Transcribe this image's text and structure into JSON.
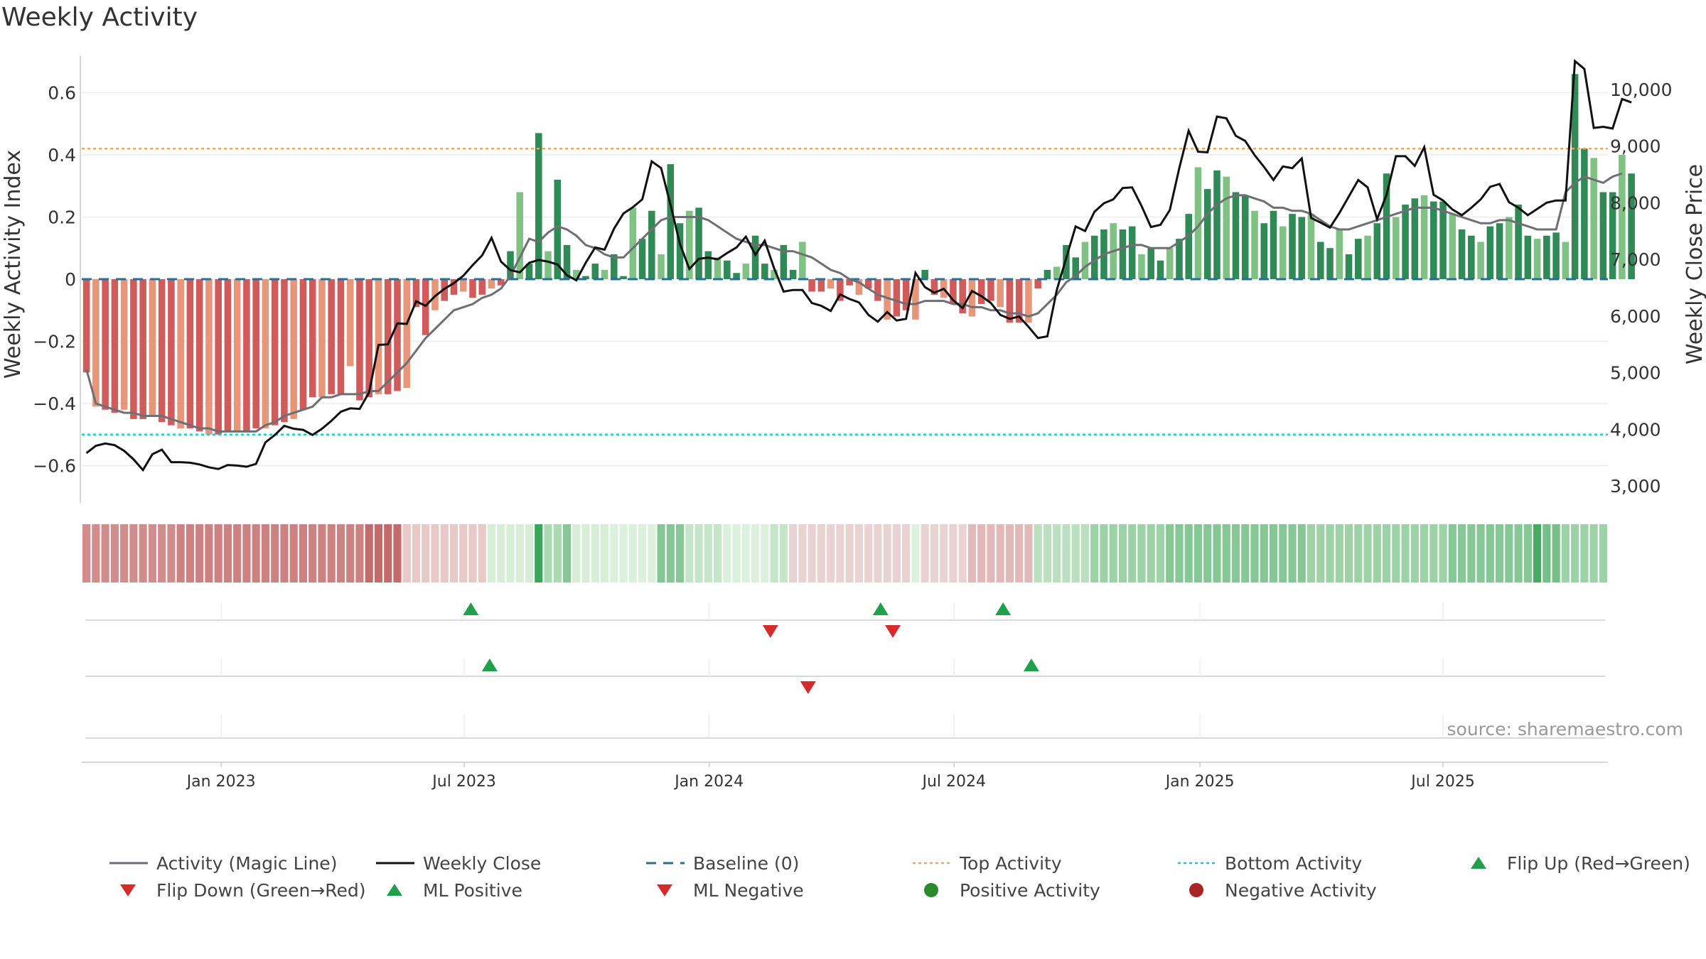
{
  "chart_data": {
    "type": "bar",
    "title": "Weekly Activity",
    "ylabel": "Weekly Activity Index",
    "y2label": "Weekly Close Price",
    "ylim": [
      -0.72,
      0.72
    ],
    "y2lim": [
      2700,
      10600
    ],
    "yticks": [
      -0.6,
      -0.4,
      -0.2,
      0,
      0.2,
      0.4,
      0.6
    ],
    "ytick_labels": [
      "−0.6",
      "−0.4",
      "−0.2",
      "0",
      "0.2",
      "0.4",
      "0.6"
    ],
    "y2ticks": [
      3000,
      4000,
      5000,
      6000,
      7000,
      8000,
      9000,
      10000
    ],
    "y2tick_labels": [
      "3,000",
      "4,000",
      "5,000",
      "6,000",
      "7,000",
      "8,000",
      "9,000",
      "10,000"
    ],
    "xlim_week": [
      0,
      162
    ],
    "xticks": [
      {
        "week": 14.8,
        "label": "Jan 2023"
      },
      {
        "week": 40.6,
        "label": "Jul 2023"
      },
      {
        "week": 66.6,
        "label": "Jan 2024"
      },
      {
        "week": 92.6,
        "label": "Jul 2024"
      },
      {
        "week": 118.7,
        "label": "Jan 2025"
      },
      {
        "week": 144.5,
        "label": "Jul 2025"
      }
    ],
    "grid": true,
    "top_activity": 0.42,
    "bottom_activity": -0.5,
    "baseline": 0,
    "activity": [
      -0.3,
      -0.41,
      -0.42,
      -0.43,
      -0.42,
      -0.45,
      -0.45,
      -0.44,
      -0.46,
      -0.47,
      -0.48,
      -0.48,
      -0.49,
      -0.5,
      -0.5,
      -0.49,
      -0.49,
      -0.49,
      -0.48,
      -0.48,
      -0.47,
      -0.46,
      -0.45,
      -0.42,
      -0.38,
      -0.38,
      -0.37,
      -0.37,
      -0.28,
      -0.39,
      -0.38,
      -0.37,
      -0.37,
      -0.36,
      -0.35,
      -0.09,
      -0.18,
      -0.1,
      -0.07,
      -0.05,
      -0.04,
      -0.06,
      -0.05,
      -0.03,
      -0.02,
      0.09,
      0.28,
      0.05,
      0.47,
      0.09,
      0.32,
      0.11,
      0.03,
      0.01,
      0.05,
      0.03,
      0.08,
      0.01,
      0.23,
      0.13,
      0.22,
      0.08,
      0.37,
      0.18,
      0.22,
      0.23,
      0.09,
      0.07,
      0.06,
      0.02,
      0.05,
      0.14,
      0.05,
      0.03,
      0.11,
      0.03,
      0.12,
      -0.04,
      -0.04,
      -0.03,
      -0.07,
      -0.02,
      -0.05,
      -0.03,
      -0.07,
      -0.13,
      -0.12,
      -0.1,
      -0.13,
      0.03,
      -0.05,
      -0.06,
      -0.08,
      -0.11,
      -0.12,
      -0.08,
      -0.07,
      -0.09,
      -0.14,
      -0.14,
      -0.14,
      -0.03,
      0.03,
      0.04,
      0.11,
      0.07,
      0.12,
      0.14,
      0.16,
      0.18,
      0.16,
      0.17,
      0.08,
      0.1,
      0.06,
      0.1,
      0.13,
      0.21,
      0.36,
      0.29,
      0.35,
      0.33,
      0.28,
      0.27,
      0.22,
      0.18,
      0.22,
      0.17,
      0.21,
      0.2,
      0.21,
      0.12,
      0.1,
      0.16,
      0.08,
      0.13,
      0.14,
      0.18,
      0.34,
      0.2,
      0.24,
      0.26,
      0.27,
      0.25,
      0.25,
      0.21,
      0.16,
      0.14,
      0.12,
      0.17,
      0.18,
      0.2,
      0.24,
      0.14,
      0.13,
      0.14,
      0.15,
      0.12,
      0.66,
      0.42,
      0.39,
      0.28,
      0.28,
      0.4,
      0.34
    ],
    "magic_line": [
      -0.29,
      -0.4,
      -0.41,
      -0.42,
      -0.43,
      -0.43,
      -0.44,
      -0.44,
      -0.44,
      -0.45,
      -0.46,
      -0.47,
      -0.48,
      -0.48,
      -0.49,
      -0.49,
      -0.49,
      -0.49,
      -0.49,
      -0.47,
      -0.46,
      -0.44,
      -0.43,
      -0.42,
      -0.41,
      -0.38,
      -0.38,
      -0.37,
      -0.37,
      -0.37,
      -0.36,
      -0.36,
      -0.33,
      -0.3,
      -0.27,
      -0.23,
      -0.19,
      -0.16,
      -0.13,
      -0.1,
      -0.09,
      -0.08,
      -0.06,
      -0.05,
      -0.03,
      0.01,
      0.07,
      0.13,
      0.12,
      0.15,
      0.17,
      0.16,
      0.14,
      0.11,
      0.1,
      0.08,
      0.07,
      0.07,
      0.1,
      0.13,
      0.16,
      0.19,
      0.2,
      0.2,
      0.2,
      0.2,
      0.19,
      0.17,
      0.15,
      0.13,
      0.12,
      0.11,
      0.11,
      0.1,
      0.09,
      0.09,
      0.08,
      0.07,
      0.05,
      0.03,
      0.02,
      0,
      -0.01,
      -0.03,
      -0.05,
      -0.06,
      -0.07,
      -0.08,
      -0.08,
      -0.07,
      -0.07,
      -0.07,
      -0.08,
      -0.08,
      -0.09,
      -0.09,
      -0.1,
      -0.1,
      -0.11,
      -0.11,
      -0.12,
      -0.11,
      -0.08,
      -0.05,
      -0.01,
      0.01,
      0.04,
      0.06,
      0.08,
      0.09,
      0.1,
      0.11,
      0.11,
      0.1,
      0.1,
      0.1,
      0.12,
      0.14,
      0.17,
      0.21,
      0.24,
      0.26,
      0.27,
      0.27,
      0.26,
      0.25,
      0.23,
      0.23,
      0.22,
      0.22,
      0.21,
      0.19,
      0.17,
      0.16,
      0.16,
      0.17,
      0.18,
      0.19,
      0.2,
      0.21,
      0.22,
      0.23,
      0.23,
      0.23,
      0.22,
      0.21,
      0.2,
      0.19,
      0.18,
      0.18,
      0.19,
      0.19,
      0.18,
      0.17,
      0.16,
      0.16,
      0.16,
      0.28,
      0.31,
      0.33,
      0.32,
      0.31,
      0.33,
      0.34
    ],
    "weekly_close": [
      3580,
      3710,
      3750,
      3720,
      3620,
      3470,
      3280,
      3560,
      3640,
      3420,
      3420,
      3410,
      3380,
      3330,
      3300,
      3370,
      3360,
      3340,
      3390,
      3770,
      3900,
      4060,
      4010,
      3990,
      3900,
      4010,
      4150,
      4310,
      4370,
      4360,
      4650,
      5490,
      5500,
      5870,
      5860,
      6260,
      6180,
      6350,
      6480,
      6580,
      6710,
      6900,
      7070,
      7380,
      6960,
      6810,
      6770,
      6940,
      6990,
      6960,
      6910,
      6720,
      6630,
      6940,
      7210,
      7170,
      7540,
      7810,
      7920,
      8060,
      8730,
      8610,
      7960,
      7270,
      6830,
      7010,
      7030,
      7000,
      7110,
      7210,
      7400,
      7080,
      7330,
      6840,
      6430,
      6460,
      6460,
      6230,
      6180,
      6090,
      6380,
      6300,
      6240,
      6020,
      5900,
      6070,
      5920,
      5950,
      6760,
      6510,
      6410,
      6480,
      6280,
      6140,
      6440,
      6350,
      6230,
      6020,
      5950,
      5990,
      5810,
      5610,
      5640,
      6460,
      7020,
      7580,
      7500,
      7840,
      7990,
      8060,
      8260,
      8270,
      7940,
      7570,
      7610,
      7870,
      8610,
      9270,
      8900,
      8890,
      9520,
      9490,
      9180,
      9090,
      8840,
      8630,
      8400,
      8640,
      8610,
      8780,
      7730,
      7650,
      7560,
      7820,
      8110,
      8400,
      8270,
      7710,
      8140,
      8820,
      8820,
      8650,
      8980,
      8140,
      8040,
      7880,
      7780,
      7910,
      8060,
      8280,
      8330,
      8010,
      7910,
      7780,
      7890,
      8000,
      8040,
      8040,
      10500,
      10360,
      9320,
      9340,
      9310,
      9830,
      9770
    ],
    "strip_shades": [
      "#d08d8c",
      "#cd8281",
      "#c46a6a",
      "#e8c9c8",
      "#ecd6d5",
      "#d7edd6",
      "#39a659",
      "#a9dbb1",
      "#86c796",
      "#dcf0de",
      "#c5e5c8",
      "#e9d3d2",
      "#e2b9b8",
      "#bbe0bf",
      "#9dd2a6",
      "#46aa61",
      "#76bf87"
    ],
    "strip_segments": [
      [
        0,
        10,
        0
      ],
      [
        10,
        30,
        1
      ],
      [
        30,
        34,
        2
      ],
      [
        34,
        43,
        3
      ],
      [
        43,
        48,
        5
      ],
      [
        48,
        49,
        6
      ],
      [
        49,
        51,
        7
      ],
      [
        51,
        52,
        8
      ],
      [
        52,
        56,
        5
      ],
      [
        56,
        61,
        9
      ],
      [
        61,
        64,
        8
      ],
      [
        64,
        68,
        10
      ],
      [
        68,
        73,
        9
      ],
      [
        73,
        75,
        10
      ],
      [
        75,
        88,
        11
      ],
      [
        88,
        89,
        9
      ],
      [
        89,
        94,
        11
      ],
      [
        94,
        101,
        12
      ],
      [
        101,
        107,
        13
      ],
      [
        107,
        115,
        14
      ],
      [
        115,
        130,
        8
      ],
      [
        130,
        145,
        14
      ],
      [
        145,
        154,
        8
      ],
      [
        154,
        155,
        15
      ],
      [
        155,
        157,
        16
      ],
      [
        157,
        162,
        14
      ]
    ],
    "flip_up": [
      41.3,
      84.8,
      97.8
    ],
    "flip_down": [
      73.1,
      86.1
    ],
    "ml_positive": [
      43.3,
      100.8
    ],
    "ml_negative": [
      77.1
    ],
    "source_text": "source: sharemaestro.com",
    "legend": [
      {
        "label": "Activity (Magic Line)",
        "marker": "line",
        "color": "#6e6e75"
      },
      {
        "label": "Weekly Close",
        "marker": "line",
        "color": "#111111"
      },
      {
        "label": "Baseline (0)",
        "marker": "dash",
        "color": "#2a6f97"
      },
      {
        "label": "Top Activity",
        "marker": "dot-line",
        "color": "#f2a65a"
      },
      {
        "label": "Bottom Activity",
        "marker": "dot-line",
        "color": "#27c6d6"
      },
      {
        "label": "Flip Up (Red→Green)",
        "marker": "tri-up",
        "color": "#21a04b"
      },
      {
        "label": "Flip Down (Green→Red)",
        "marker": "tri-down",
        "color": "#d62b2b"
      },
      {
        "label": "ML Positive",
        "marker": "tri-up",
        "color": "#21a04b"
      },
      {
        "label": "ML Negative",
        "marker": "tri-down",
        "color": "#d62b2b"
      },
      {
        "label": "Positive Activity",
        "marker": "circle",
        "color": "#2b8a2b"
      },
      {
        "label": "Negative Activity",
        "marker": "circle",
        "color": "#a82424"
      }
    ],
    "colors": {
      "pos_strong": "#2f8a56",
      "pos_light": "#7fc283",
      "neg_strong": "#d15b5b",
      "neg_light": "#e8967a",
      "magic_line": "#6e6e75",
      "close": "#111111",
      "baseline": "#2a6f97",
      "top": "#f2a65a",
      "bottom": "#27c6d6",
      "up": "#21a04b",
      "down": "#d62b2b",
      "grid": "#ececec",
      "axis": "#cccccc"
    }
  }
}
